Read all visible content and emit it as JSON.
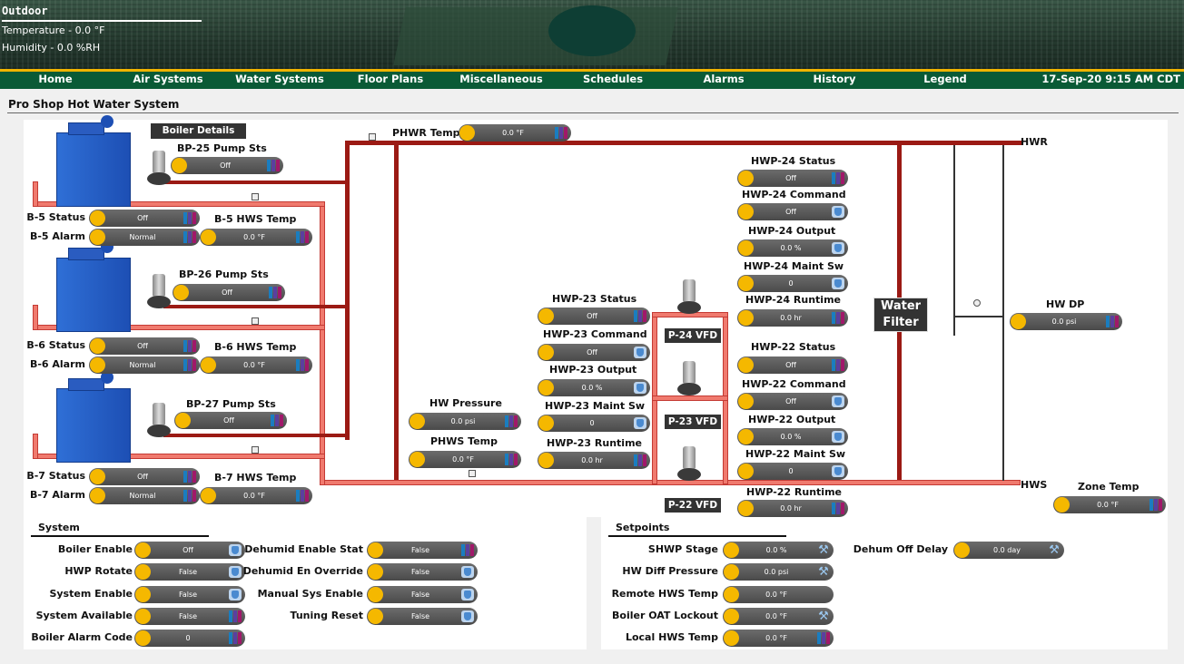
{
  "outdoor": {
    "title": "Outdoor",
    "temperature": "Temperature - 0.0 °F",
    "humidity": "Humidity - 0.0 %RH"
  },
  "nav": {
    "items": [
      "Home",
      "Air Systems",
      "Water Systems",
      "Floor Plans",
      "Miscellaneous",
      "Schedules",
      "Alarms",
      "History",
      "Legend"
    ],
    "datetime": "17-Sep-20 9:15 AM CDT"
  },
  "page_title": "Pro Shop Hot Water System",
  "boiler_details": "Boiler Details",
  "labels": {
    "bp25": "BP-25 Pump Sts",
    "bp26": "BP-26 Pump Sts",
    "bp27": "BP-27 Pump Sts",
    "b5s": "B-5 Status",
    "b5a": "B-5 Alarm",
    "b5t": "B-5 HWS Temp",
    "b6s": "B-6 Status",
    "b6a": "B-6 Alarm",
    "b6t": "B-6 HWS Temp",
    "b7s": "B-7 Status",
    "b7a": "B-7 Alarm",
    "b7t": "B-7 HWS Temp",
    "phwr": "PHWR Temp",
    "hwpress": "HW Pressure",
    "phws": "PHWS Temp",
    "h23s": "HWP-23 Status",
    "h23c": "HWP-23 Command",
    "h23o": "HWP-23 Output",
    "h23m": "HWP-23 Maint Sw",
    "h23r": "HWP-23 Runtime",
    "h24s": "HWP-24 Status",
    "h24c": "HWP-24 Command",
    "h24o": "HWP-24 Output",
    "h24m": "HWP-24 Maint Sw",
    "h24r": "HWP-24 Runtime",
    "h22s": "HWP-22 Status",
    "h22c": "HWP-22 Command",
    "h22o": "HWP-22 Output",
    "h22m": "HWP-22 Maint Sw",
    "h22r": "HWP-22 Runtime",
    "hwdp": "HW DP",
    "zone": "Zone Temp",
    "hwr": "HWR",
    "hws": "HWS",
    "water1": "Water",
    "water2": "Filter",
    "vfd24": "P-24 VFD",
    "vfd23": "P-23 VFD",
    "vfd22": "P-22 VFD"
  },
  "values": {
    "bp25": "Off",
    "bp26": "Off",
    "bp27": "Off",
    "b5s": "Off",
    "b5a": "Normal",
    "b5t": "0.0 °F",
    "b6s": "Off",
    "b6a": "Normal",
    "b6t": "0.0 °F",
    "b7s": "Off",
    "b7a": "Normal",
    "b7t": "0.0 °F",
    "phwr": "0.0 °F",
    "hwpress": "0.0 psi",
    "phws": "0.0 °F",
    "h23s": "Off",
    "h23c": "Off",
    "h23o": "0.0 %",
    "h23m": "0",
    "h23r": "0.0 hr",
    "h24s": "Off",
    "h24c": "Off",
    "h24o": "0.0 %",
    "h24m": "0",
    "h24r": "0.0 hr",
    "h22s": "Off",
    "h22c": "Off",
    "h22o": "0.0 %",
    "h22m": "0",
    "h22r": "0.0 hr",
    "hwdp": "0.0 psi",
    "zone": "0.0 °F"
  },
  "system": {
    "title": "System",
    "left": [
      {
        "label": "Boiler Enable",
        "value": "Off",
        "icon": "hand"
      },
      {
        "label": "HWP Rotate",
        "value": "False",
        "icon": "hand"
      },
      {
        "label": "System Enable",
        "value": "False",
        "icon": "hand"
      },
      {
        "label": "System Available",
        "value": "False",
        "icon": "bars"
      },
      {
        "label": "Boiler Alarm Code",
        "value": "0",
        "icon": "bars"
      }
    ],
    "right": [
      {
        "label": "Dehumid Enable Stat",
        "value": "False",
        "icon": "bars"
      },
      {
        "label": "Dehumid En Override",
        "value": "False",
        "icon": "hand"
      },
      {
        "label": "Manual Sys Enable",
        "value": "False",
        "icon": "hand"
      },
      {
        "label": "Tuning Reset",
        "value": "False",
        "icon": "hand"
      }
    ]
  },
  "setpoints": {
    "title": "Setpoints",
    "left": [
      {
        "label": "SHWP Stage",
        "value": "0.0 %",
        "icon": "wrench"
      },
      {
        "label": "HW Diff Pressure",
        "value": "0.0 psi",
        "icon": "wrench"
      },
      {
        "label": "Remote HWS Temp",
        "value": "0.0 °F",
        "icon": "none"
      },
      {
        "label": "Boiler OAT Lockout",
        "value": "0.0 °F",
        "icon": "wrench"
      },
      {
        "label": "Local HWS Temp",
        "value": "0.0 °F",
        "icon": "bars"
      }
    ],
    "right": [
      {
        "label": "Dehum Off Delay",
        "value": "0.0 day",
        "icon": "wrench"
      }
    ]
  }
}
